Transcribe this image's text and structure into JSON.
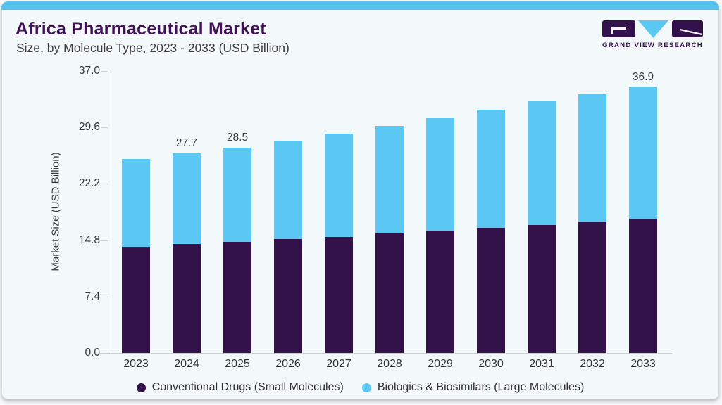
{
  "page": {
    "title": "Africa Pharmaceutical Market",
    "subtitle": "Size, by Molecule Type, 2023 - 2033 (USD Billion)",
    "brand": {
      "name": "GRAND VIEW RESEARCH"
    },
    "colors": {
      "accent_bar": "#55C3EE",
      "card_bg": "#F3F8FB",
      "title_purple": "#401254",
      "bar_dark_purple": "#331149",
      "bar_light_blue": "#5BC8F3",
      "axis_line": "#C9CED5"
    }
  },
  "chart_data": {
    "type": "bar",
    "stacked": true,
    "title": "Africa Pharmaceutical Market",
    "subtitle": "Size, by Molecule Type, 2023 - 2033 (USD Billion)",
    "xlabel": "",
    "ylabel": "Market Size (USD Billion)",
    "ylim": [
      0,
      37.0
    ],
    "yticks": [
      0.0,
      7.4,
      14.8,
      22.2,
      29.6,
      37.0
    ],
    "ytick_labels": [
      "0.0",
      "7.4",
      "14.8",
      "22.2",
      "29.6",
      "37.0"
    ],
    "grid": false,
    "legend_position": "bottom",
    "categories": [
      "2023",
      "2024",
      "2025",
      "2026",
      "2027",
      "2028",
      "2029",
      "2030",
      "2031",
      "2032",
      "2033"
    ],
    "series": [
      {
        "name": "Conventional Drugs (Small Molecules)",
        "color": "#331149",
        "values": [
          14.7,
          15.1,
          15.4,
          15.8,
          16.1,
          16.6,
          17.0,
          17.4,
          17.8,
          18.1,
          18.6
        ]
      },
      {
        "name": "Biologics & Biosimilars (Large Molecules)",
        "color": "#5BC8F3",
        "values": [
          12.2,
          12.6,
          13.1,
          13.7,
          14.3,
          14.9,
          15.6,
          16.4,
          17.1,
          17.8,
          18.3
        ]
      }
    ],
    "totals": [
      26.9,
      27.7,
      28.5,
      29.5,
      30.4,
      31.5,
      32.6,
      33.8,
      34.9,
      35.9,
      36.9
    ],
    "value_labels": [
      {
        "category": "2024",
        "text": "27.7"
      },
      {
        "category": "2025",
        "text": "28.5"
      },
      {
        "category": "2033",
        "text": "36.9"
      }
    ]
  }
}
